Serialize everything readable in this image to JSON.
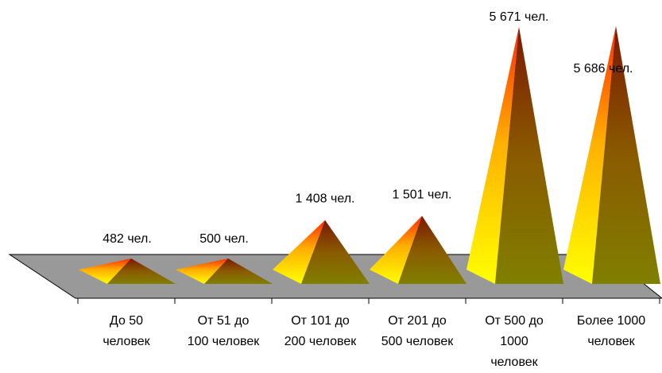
{
  "chart_data": {
    "type": "bar",
    "style": "3d-pyramid",
    "categories": [
      [
        "До 50",
        "человек"
      ],
      [
        "От 51 до",
        "100 человек"
      ],
      [
        "От 101 до",
        "200 человек"
      ],
      [
        "От 201 до",
        "500 человек"
      ],
      [
        "От 500 до",
        "1000",
        "человек"
      ],
      [
        "Более 1000",
        "человек"
      ]
    ],
    "values": [
      482,
      500,
      1408,
      1501,
      5671,
      5686
    ],
    "data_labels": [
      "482 чел.",
      "500 чел.",
      "1 408 чел.",
      "1 501 чел.",
      "5 671 чел.",
      "5 686 чел."
    ],
    "title": "",
    "xlabel": "",
    "ylabel": "",
    "legend": "none",
    "grid": false,
    "colors": {
      "floor": "#999999",
      "light_face_top": "#ff2a00",
      "light_face_bottom": "#ffff00",
      "dark_face_top": "#7a1f00",
      "dark_face_bottom": "#7f7f00"
    }
  }
}
